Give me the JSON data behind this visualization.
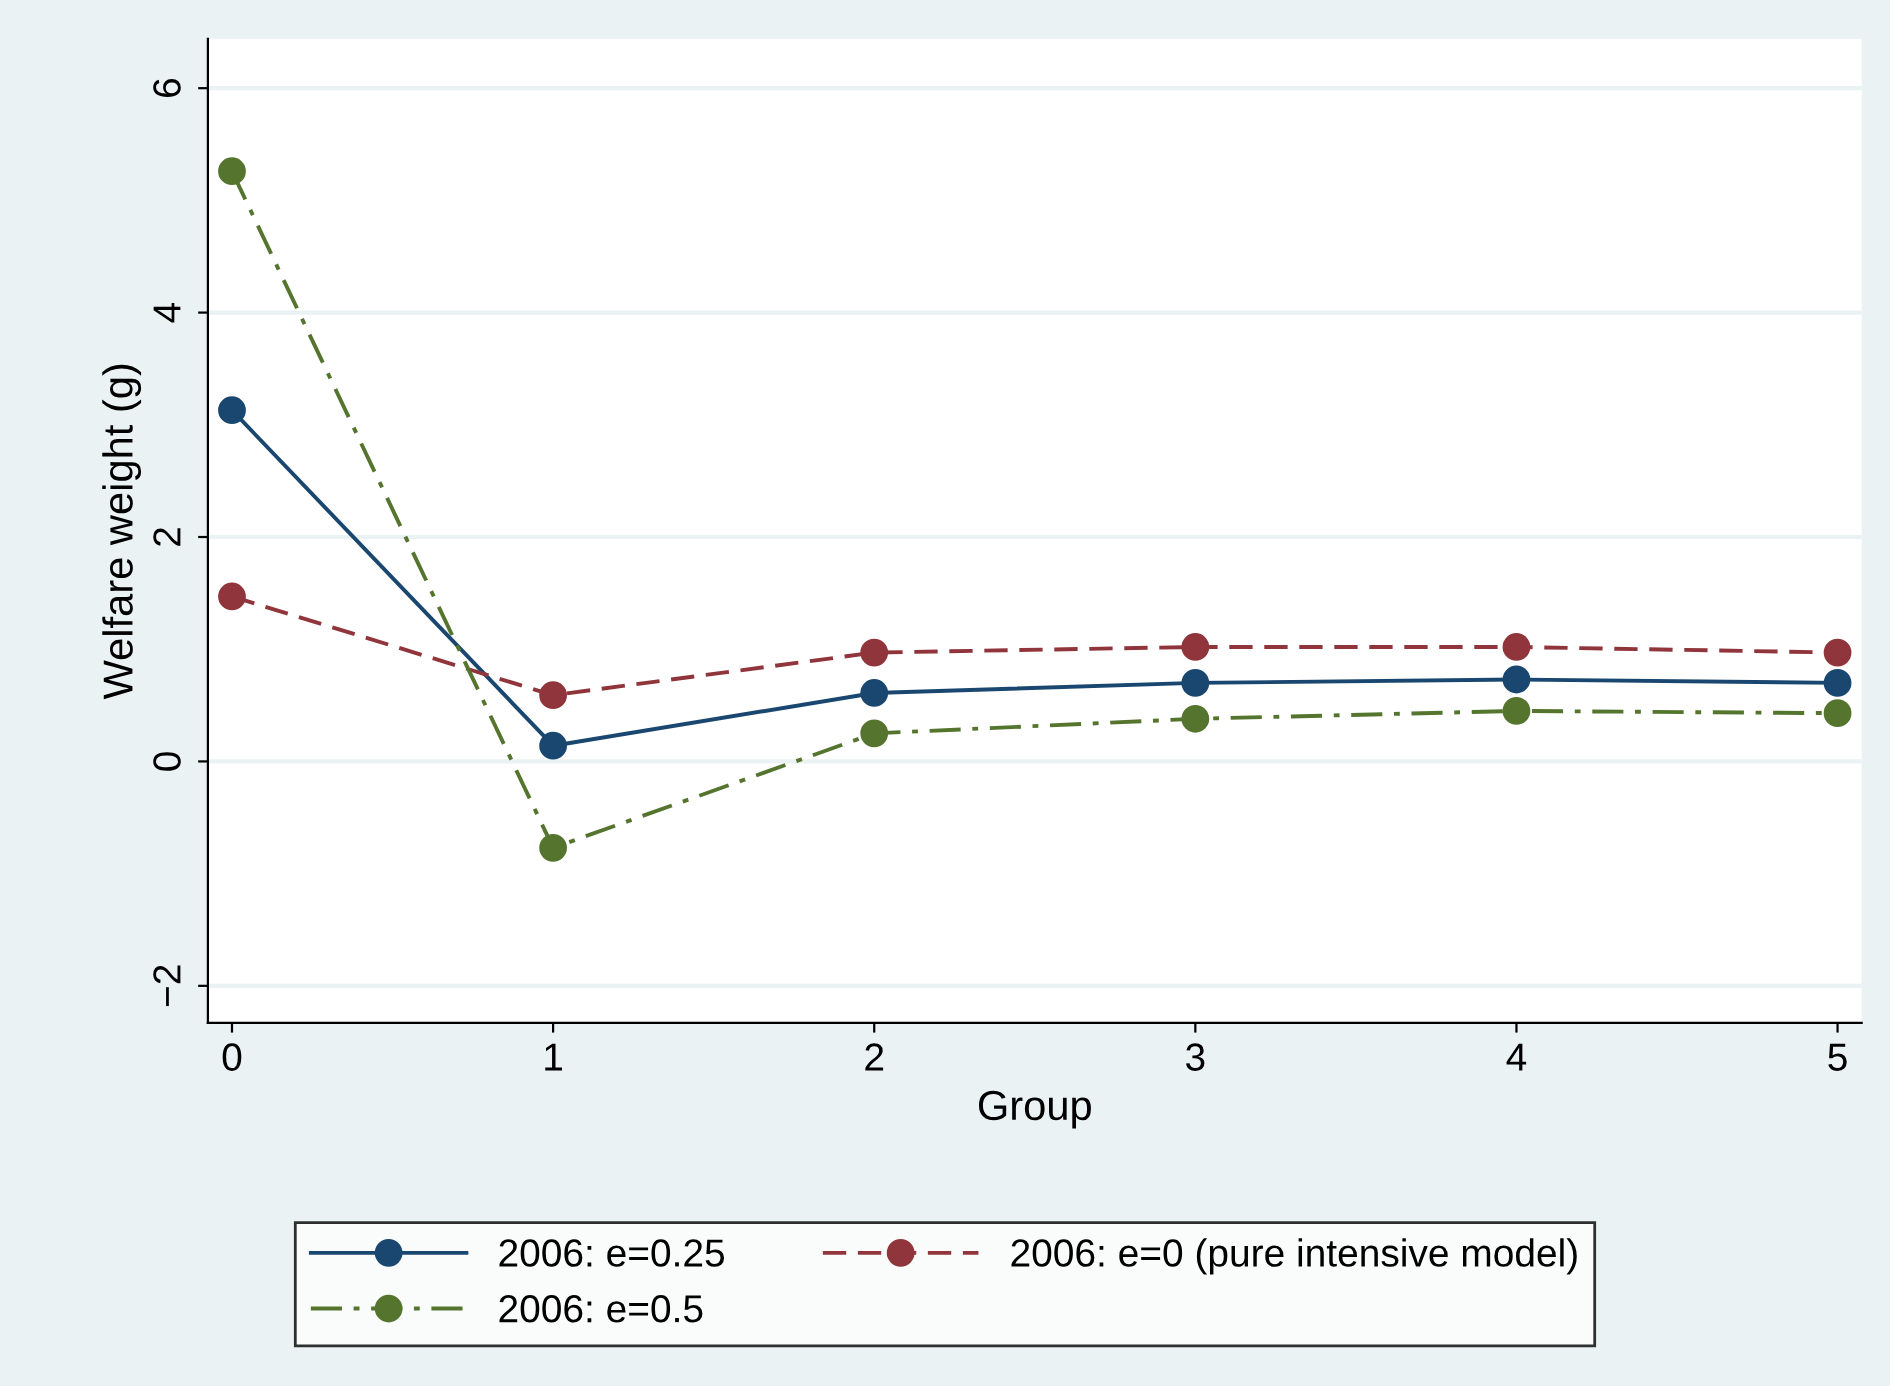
{
  "chart_data": {
    "type": "line",
    "xlabel": "Group",
    "ylabel": "Welfare weight (g)",
    "x": [
      0,
      1,
      2,
      3,
      4,
      5
    ],
    "series": [
      {
        "name": "2006: e=0.25",
        "color": "#1a476f",
        "line_style": "solid",
        "values": [
          3.13,
          0.14,
          0.61,
          0.7,
          0.73,
          0.7
        ]
      },
      {
        "name": "2006: e=0 (pure intensive model)",
        "color": "#90353b",
        "line_style": "dashed",
        "values": [
          1.47,
          0.59,
          0.97,
          1.02,
          1.02,
          0.97
        ]
      },
      {
        "name": "2006: e=0.5",
        "color": "#55752f",
        "line_style": "dashdot",
        "values": [
          5.26,
          -0.77,
          0.25,
          0.38,
          0.45,
          0.43
        ]
      }
    ],
    "xlim": [
      -0.075,
      5.075
    ],
    "ylim": [
      -2.33,
      6.44
    ],
    "xticks": [
      0,
      1,
      2,
      3,
      4,
      5
    ],
    "yticks": [
      {
        "value": -2,
        "label": "−2"
      },
      0,
      2,
      4,
      6
    ],
    "grid": "y",
    "legend": "bottom",
    "marker": "circle"
  }
}
